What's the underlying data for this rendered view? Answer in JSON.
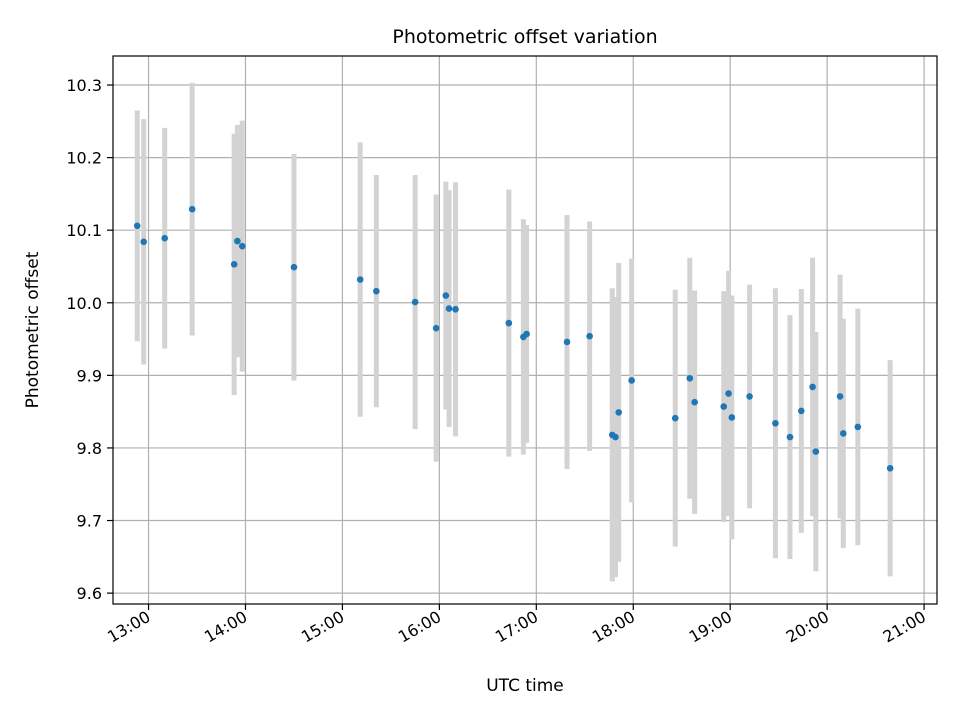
{
  "chart_data": {
    "type": "scatter",
    "title": "Photometric offset variation",
    "xlabel": "UTC time",
    "ylabel": "Photometric offset",
    "x_ticks": [
      "13:00",
      "14:00",
      "15:00",
      "16:00",
      "17:00",
      "18:00",
      "19:00",
      "20:00",
      "21:00"
    ],
    "y_ticks": [
      "9.6",
      "9.7",
      "9.8",
      "9.9",
      "10.0",
      "10.1",
      "10.2",
      "10.3"
    ],
    "xlim": [
      "12:38",
      "21:08"
    ],
    "ylim": [
      9.585,
      10.34
    ],
    "grid": true,
    "colors": {
      "point": "#1f77b4",
      "errorbar": "#d3d3d3",
      "grid": "#b0b0b0"
    },
    "series": [
      {
        "points": [
          {
            "x": "12:53",
            "y": 10.106,
            "err": 0.159
          },
          {
            "x": "12:57",
            "y": 10.084,
            "err": 0.169
          },
          {
            "x": "13:10",
            "y": 10.089,
            "err": 0.152
          },
          {
            "x": "13:27",
            "y": 10.129,
            "err": 0.174
          },
          {
            "x": "13:53",
            "y": 10.053,
            "err": 0.18
          },
          {
            "x": "13:55",
            "y": 10.085,
            "err": 0.16
          },
          {
            "x": "13:58",
            "y": 10.078,
            "err": 0.173
          },
          {
            "x": "14:30",
            "y": 10.049,
            "err": 0.156
          },
          {
            "x": "15:11",
            "y": 10.032,
            "err": 0.189
          },
          {
            "x": "15:21",
            "y": 10.016,
            "err": 0.16
          },
          {
            "x": "15:45",
            "y": 10.001,
            "err": 0.175
          },
          {
            "x": "15:58",
            "y": 9.965,
            "err": 0.184
          },
          {
            "x": "16:04",
            "y": 10.01,
            "err": 0.157
          },
          {
            "x": "16:06",
            "y": 9.992,
            "err": 0.163
          },
          {
            "x": "16:10",
            "y": 9.991,
            "err": 0.175
          },
          {
            "x": "16:43",
            "y": 9.972,
            "err": 0.184
          },
          {
            "x": "16:52",
            "y": 9.953,
            "err": 0.162
          },
          {
            "x": "16:54",
            "y": 9.957,
            "err": 0.15
          },
          {
            "x": "17:19",
            "y": 9.946,
            "err": 0.175
          },
          {
            "x": "17:33",
            "y": 9.954,
            "err": 0.158
          },
          {
            "x": "17:47",
            "y": 9.818,
            "err": 0.202
          },
          {
            "x": "17:49",
            "y": 9.815,
            "err": 0.193
          },
          {
            "x": "17:51",
            "y": 9.849,
            "err": 0.206
          },
          {
            "x": "17:59",
            "y": 9.893,
            "err": 0.168
          },
          {
            "x": "18:26",
            "y": 9.841,
            "err": 0.177
          },
          {
            "x": "18:35",
            "y": 9.896,
            "err": 0.166
          },
          {
            "x": "18:38",
            "y": 9.863,
            "err": 0.154
          },
          {
            "x": "18:56",
            "y": 9.857,
            "err": 0.159
          },
          {
            "x": "18:59",
            "y": 9.875,
            "err": 0.169
          },
          {
            "x": "19:01",
            "y": 9.842,
            "err": 0.168
          },
          {
            "x": "19:12",
            "y": 9.871,
            "err": 0.154
          },
          {
            "x": "19:28",
            "y": 9.834,
            "err": 0.186
          },
          {
            "x": "19:37",
            "y": 9.815,
            "err": 0.168
          },
          {
            "x": "19:44",
            "y": 9.851,
            "err": 0.168
          },
          {
            "x": "19:51",
            "y": 9.884,
            "err": 0.178
          },
          {
            "x": "19:53",
            "y": 9.795,
            "err": 0.165
          },
          {
            "x": "20:08",
            "y": 9.871,
            "err": 0.168
          },
          {
            "x": "20:10",
            "y": 9.82,
            "err": 0.158
          },
          {
            "x": "20:19",
            "y": 9.829,
            "err": 0.163
          },
          {
            "x": "20:39",
            "y": 9.772,
            "err": 0.149
          }
        ]
      }
    ]
  }
}
